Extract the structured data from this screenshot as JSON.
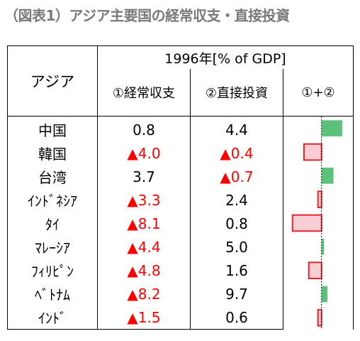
{
  "title": "（図表1）アジア主要国の経常収支・直接投資",
  "table": {
    "period_header": "1996年[% of GDP]",
    "row_header": "アジア",
    "col_headers": [
      "①経常収支",
      "②直接投資",
      "①+②"
    ],
    "negative_marker": "▲",
    "rows": [
      {
        "country": "中国",
        "ca": "0.8",
        "ca_neg": false,
        "fdi": "4.4",
        "fdi_neg": false
      },
      {
        "country": "韓国",
        "ca": "4.0",
        "ca_neg": true,
        "fdi": "0.4",
        "fdi_neg": true
      },
      {
        "country": "台湾",
        "ca": "3.7",
        "ca_neg": false,
        "fdi": "0.7",
        "fdi_neg": true
      },
      {
        "country": "ｲﾝﾄﾞﾈｼｱ",
        "ca": "3.3",
        "ca_neg": true,
        "fdi": "2.4",
        "fdi_neg": false
      },
      {
        "country": "ﾀｲ",
        "ca": "8.1",
        "ca_neg": true,
        "fdi": "0.8",
        "fdi_neg": false
      },
      {
        "country": "ﾏﾚｰｼｱ",
        "ca": "4.4",
        "ca_neg": true,
        "fdi": "5.0",
        "fdi_neg": false
      },
      {
        "country": "ﾌｨﾘﾋﾟﾝ",
        "ca": "4.8",
        "ca_neg": true,
        "fdi": "1.6",
        "fdi_neg": false
      },
      {
        "country": "ﾍﾞﾄﾅﾑ",
        "ca": "8.2",
        "ca_neg": true,
        "fdi": "9.7",
        "fdi_neg": false
      },
      {
        "country": "ｲﾝﾄﾞ",
        "ca": "1.5",
        "ca_neg": true,
        "fdi": "0.6",
        "fdi_neg": false
      }
    ]
  },
  "chart_data": {
    "type": "bar",
    "orientation": "horizontal",
    "categories": [
      "中国",
      "韓国",
      "台湾",
      "ｲﾝﾄﾞﾈｼｱ",
      "ﾀｲ",
      "ﾏﾚｰｼｱ",
      "ﾌｨﾘﾋﾟﾝ",
      "ﾍﾞﾄﾅﾑ",
      "ｲﾝﾄﾞ"
    ],
    "values": [
      5.2,
      -4.4,
      3.0,
      -0.9,
      -7.3,
      0.6,
      -3.2,
      1.5,
      -0.9
    ],
    "axis_range": [
      -8.5,
      7
    ],
    "zero_line": "dashed",
    "colors": {
      "positive_fill": "#5cc17a",
      "negative_fill": "#f8cdd3",
      "negative_stroke": "#e0262b"
    }
  },
  "colors": {
    "negative_text": "#ff0000",
    "title": "#7a7a7a"
  }
}
